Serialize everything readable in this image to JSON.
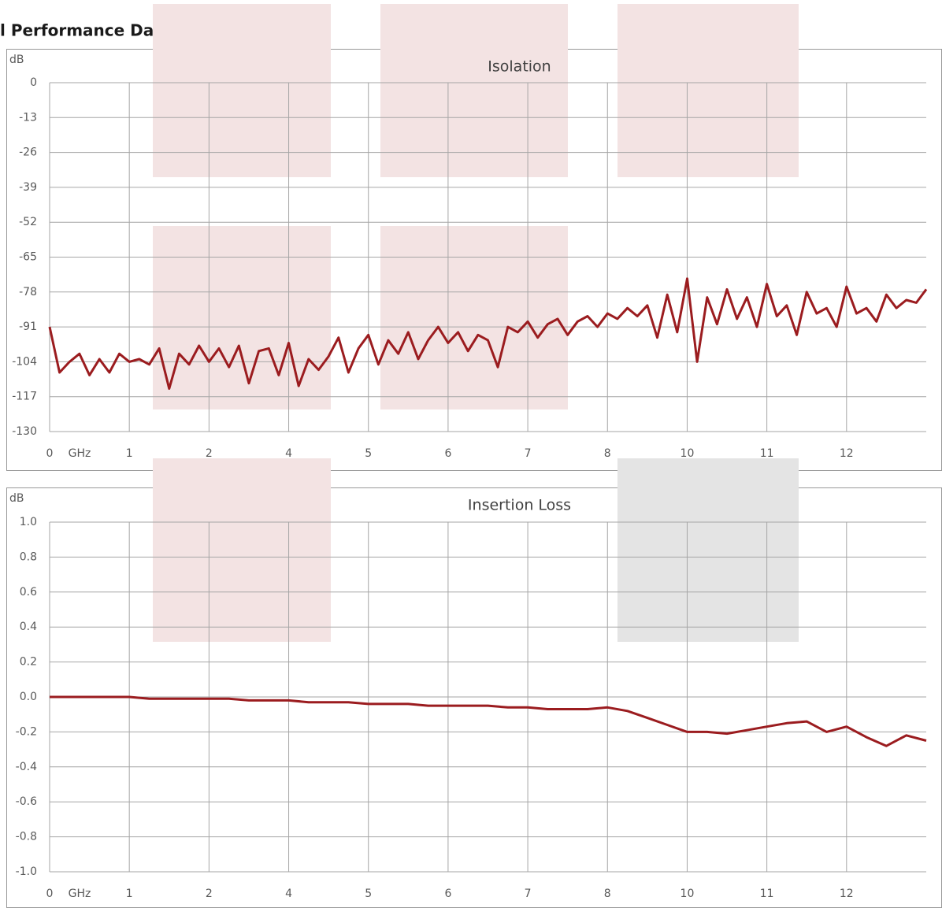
{
  "page_title": "l Performance Data",
  "chart_data": [
    {
      "type": "line",
      "title": "Isolation",
      "y_label": "dB",
      "x_label": "GHz",
      "color": "#9b1c1f",
      "grid": true,
      "xlim": [
        0,
        11
      ],
      "ylim": [
        -130,
        0
      ],
      "yticks": [
        0,
        -13,
        -26,
        -39,
        -52,
        -65,
        -78,
        -91,
        -104,
        -117,
        -130
      ],
      "xticks": [
        {
          "value": 0,
          "label": "0"
        },
        {
          "value": 1,
          "label": "1"
        },
        {
          "value": 2,
          "label": "2"
        },
        {
          "value": 3,
          "label": "4"
        },
        {
          "value": 4,
          "label": "5"
        },
        {
          "value": 5,
          "label": "6"
        },
        {
          "value": 6,
          "label": "7"
        },
        {
          "value": 7,
          "label": "8"
        },
        {
          "value": 8,
          "label": "10"
        },
        {
          "value": 9,
          "label": "11"
        },
        {
          "value": 10,
          "label": "12"
        }
      ],
      "x": [
        0,
        0.125,
        0.25,
        0.375,
        0.5,
        0.625,
        0.75,
        0.875,
        1,
        1.125,
        1.25,
        1.375,
        1.5,
        1.625,
        1.75,
        1.875,
        2,
        2.125,
        2.25,
        2.375,
        2.5,
        2.625,
        2.75,
        2.875,
        3,
        3.125,
        3.25,
        3.375,
        3.5,
        3.625,
        3.75,
        3.875,
        4,
        4.125,
        4.25,
        4.375,
        4.5,
        4.625,
        4.75,
        4.875,
        5,
        5.125,
        5.25,
        5.375,
        5.5,
        5.625,
        5.75,
        5.875,
        6,
        6.125,
        6.25,
        6.375,
        6.5,
        6.625,
        6.75,
        6.875,
        7,
        7.125,
        7.25,
        7.375,
        7.5,
        7.625,
        7.75,
        7.875,
        8,
        8.125,
        8.25,
        8.375,
        8.5,
        8.625,
        8.75,
        8.875,
        9,
        9.125,
        9.25,
        9.375,
        9.5,
        9.625,
        9.75,
        9.875,
        10,
        10.125,
        10.25,
        10.375,
        10.5,
        10.625,
        10.75,
        10.875,
        11
      ],
      "values": [
        -91,
        -108,
        -104,
        -101,
        -109,
        -103,
        -108,
        -101,
        -104,
        -103,
        -105,
        -99,
        -114,
        -101,
        -105,
        -98,
        -104,
        -99,
        -106,
        -98,
        -112,
        -100,
        -99,
        -109,
        -97,
        -113,
        -103,
        -107,
        -102,
        -95,
        -108,
        -99,
        -94,
        -105,
        -96,
        -101,
        -93,
        -103,
        -96,
        -91,
        -97,
        -93,
        -100,
        -94,
        -96,
        -106,
        -91,
        -93,
        -89,
        -95,
        -90,
        -88,
        -94,
        -89,
        -87,
        -91,
        -86,
        -88,
        -84,
        -87,
        -83,
        -95,
        -79,
        -93,
        -73,
        -104,
        -80,
        -90,
        -77,
        -88,
        -80,
        -91,
        -75,
        -87,
        -83,
        -94,
        -78,
        -86,
        -84,
        -91,
        -76,
        -86,
        -84,
        -89,
        -79,
        -84,
        -81,
        -82,
        -77
      ]
    },
    {
      "type": "line",
      "title": "Insertion Loss",
      "y_label": "dB",
      "x_label": "GHz",
      "color": "#9b1c1f",
      "grid": true,
      "xlim": [
        0,
        11
      ],
      "ylim": [
        -1,
        1
      ],
      "yticks": [
        {
          "value": 1,
          "label": "1.0"
        },
        0.8,
        0.6,
        0.4,
        0.2,
        {
          "value": 0,
          "label": "0.0"
        },
        -0.2,
        -0.4,
        -0.6,
        -0.8,
        {
          "value": -1,
          "label": "-1.0"
        }
      ],
      "xticks": [
        {
          "value": 0,
          "label": "0"
        },
        {
          "value": 1,
          "label": "1"
        },
        {
          "value": 2,
          "label": "2"
        },
        {
          "value": 3,
          "label": "4"
        },
        {
          "value": 4,
          "label": "5"
        },
        {
          "value": 5,
          "label": "6"
        },
        {
          "value": 6,
          "label": "7"
        },
        {
          "value": 7,
          "label": "8"
        },
        {
          "value": 8,
          "label": "10"
        },
        {
          "value": 9,
          "label": "11"
        },
        {
          "value": 10,
          "label": "12"
        }
      ],
      "x": [
        0,
        0.25,
        0.5,
        0.75,
        1,
        1.25,
        1.5,
        1.75,
        2,
        2.25,
        2.5,
        2.75,
        3,
        3.25,
        3.5,
        3.75,
        4,
        4.25,
        4.5,
        4.75,
        5,
        5.25,
        5.5,
        5.75,
        6,
        6.25,
        6.5,
        6.75,
        7,
        7.25,
        7.5,
        7.75,
        8,
        8.25,
        8.5,
        8.75,
        9,
        9.25,
        9.5,
        9.75,
        10,
        10.25,
        10.5,
        10.75,
        11
      ],
      "values": [
        0.0,
        0.0,
        0.0,
        0.0,
        0.0,
        -0.01,
        -0.01,
        -0.01,
        -0.01,
        -0.01,
        -0.02,
        -0.02,
        -0.02,
        -0.03,
        -0.03,
        -0.03,
        -0.04,
        -0.04,
        -0.04,
        -0.05,
        -0.05,
        -0.05,
        -0.05,
        -0.06,
        -0.06,
        -0.07,
        -0.07,
        -0.07,
        -0.06,
        -0.08,
        -0.12,
        -0.16,
        -0.2,
        -0.2,
        -0.21,
        -0.19,
        -0.17,
        -0.15,
        -0.14,
        -0.2,
        -0.17,
        -0.23,
        -0.28,
        -0.22,
        -0.25
      ]
    }
  ]
}
